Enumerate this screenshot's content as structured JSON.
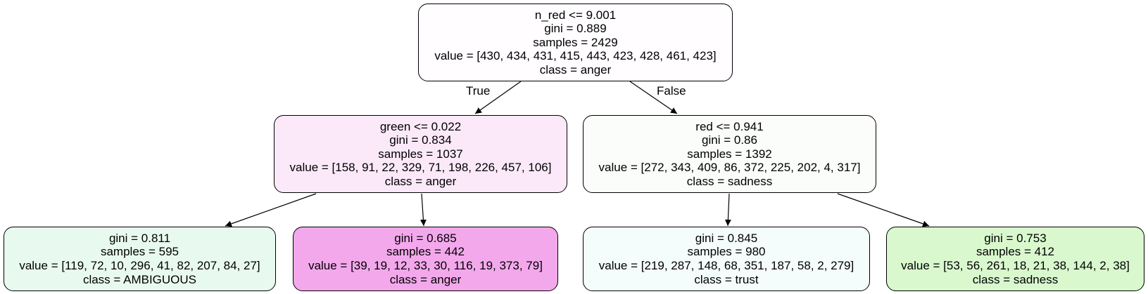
{
  "tree": {
    "nodes": {
      "root": {
        "lines": [
          "n_red <= 9.001",
          "gini = 0.889",
          "samples = 2429",
          "value = [430, 434, 431, 415, 443, 423, 428, 461, 423]",
          "class = anger"
        ],
        "fill": "#fffdff"
      },
      "left": {
        "lines": [
          "green <= 0.022",
          "gini = 0.834",
          "samples = 1037",
          "value = [158, 91, 22, 329, 71, 198, 226, 457, 106]",
          "class = anger"
        ],
        "fill": "#fbe9f9"
      },
      "right": {
        "lines": [
          "red <= 0.941",
          "gini = 0.86",
          "samples = 1392",
          "value = [272, 343, 409, 86, 372, 225, 202, 4, 317]",
          "class = sadness"
        ],
        "fill": "#fbfdfa"
      },
      "ll": {
        "lines": [
          "gini = 0.811",
          "samples = 595",
          "value = [119, 72, 10, 296, 41, 82, 207, 84, 27]",
          "class = AMBIGUOUS"
        ],
        "fill": "#e8faef"
      },
      "lr": {
        "lines": [
          "gini = 0.685",
          "samples = 442",
          "value = [39, 19, 12, 33, 30, 116, 19, 373, 79]",
          "class = anger"
        ],
        "fill": "#f3a8ec"
      },
      "rl": {
        "lines": [
          "gini = 0.845",
          "samples = 980",
          "value = [219, 287, 148, 68, 351, 187, 58, 2, 279]",
          "class = trust"
        ],
        "fill": "#f4fcfc"
      },
      "rr": {
        "lines": [
          "gini = 0.753",
          "samples = 412",
          "value = [53, 56, 261, 18, 21, 38, 144, 2, 38]",
          "class = sadness"
        ],
        "fill": "#d9f8ce"
      }
    },
    "edge_labels": {
      "true_label": "True",
      "false_label": "False"
    }
  }
}
